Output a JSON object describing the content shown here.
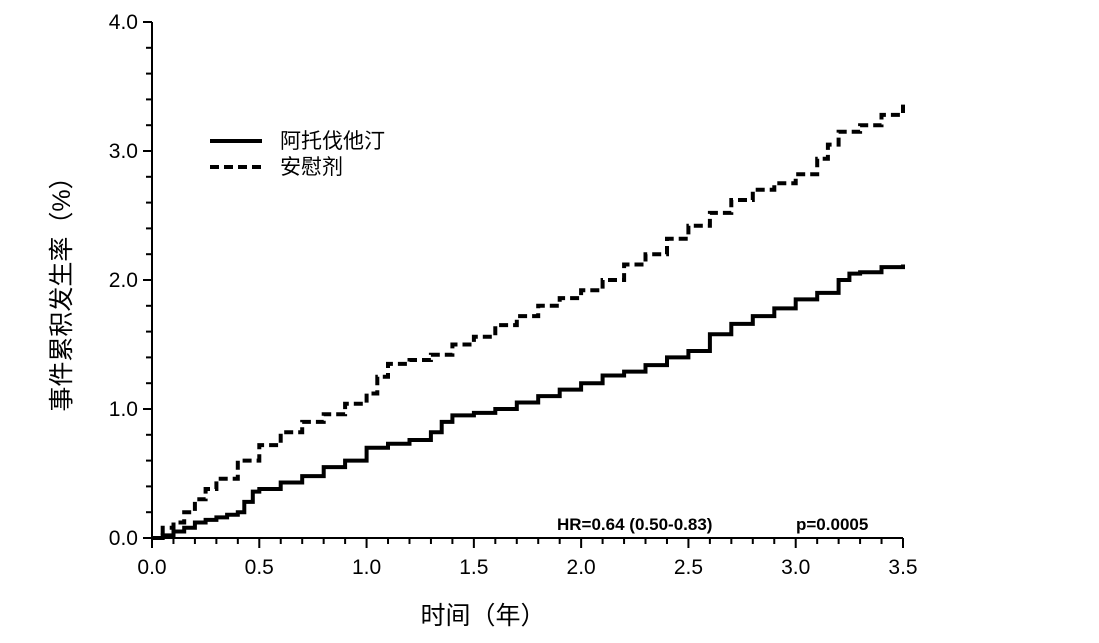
{
  "chart_data": {
    "type": "line",
    "xlabel": "时间（年）",
    "ylabel": "事件累积发生率（%）",
    "xlim": [
      0,
      3.5
    ],
    "ylim": [
      0,
      4.0
    ],
    "xticks": [
      "0.0",
      "0.5",
      "1.0",
      "1.5",
      "2.0",
      "2.5",
      "3.0",
      "3.5"
    ],
    "yticks": [
      "0.0",
      "1.0",
      "2.0",
      "3.0",
      "4.0"
    ],
    "grid": false,
    "legend_position": "top-left",
    "annotations": {
      "hr": "HR=0.64 (0.50-0.83)",
      "p": "p=0.0005"
    },
    "series": [
      {
        "name": "阿托伐他汀",
        "style": "solid",
        "x": [
          0.0,
          0.05,
          0.1,
          0.15,
          0.2,
          0.25,
          0.3,
          0.35,
          0.4,
          0.43,
          0.47,
          0.5,
          0.6,
          0.7,
          0.8,
          0.9,
          1.0,
          1.1,
          1.2,
          1.3,
          1.35,
          1.4,
          1.5,
          1.6,
          1.7,
          1.8,
          1.9,
          2.0,
          2.1,
          2.2,
          2.3,
          2.4,
          2.5,
          2.6,
          2.7,
          2.8,
          2.9,
          3.0,
          3.1,
          3.2,
          3.25,
          3.3,
          3.4,
          3.5
        ],
        "values": [
          0.0,
          0.02,
          0.05,
          0.08,
          0.12,
          0.14,
          0.16,
          0.18,
          0.2,
          0.28,
          0.36,
          0.38,
          0.43,
          0.48,
          0.55,
          0.6,
          0.7,
          0.73,
          0.76,
          0.82,
          0.9,
          0.95,
          0.97,
          1.0,
          1.05,
          1.1,
          1.15,
          1.2,
          1.26,
          1.29,
          1.34,
          1.4,
          1.45,
          1.58,
          1.66,
          1.72,
          1.78,
          1.85,
          1.9,
          2.0,
          2.05,
          2.06,
          2.1,
          2.12
        ]
      },
      {
        "name": "安慰剂",
        "style": "dashed",
        "x": [
          0.0,
          0.05,
          0.1,
          0.15,
          0.2,
          0.25,
          0.3,
          0.4,
          0.5,
          0.6,
          0.7,
          0.8,
          0.9,
          1.0,
          1.05,
          1.1,
          1.2,
          1.3,
          1.4,
          1.5,
          1.6,
          1.7,
          1.8,
          1.9,
          2.0,
          2.1,
          2.2,
          2.3,
          2.4,
          2.5,
          2.6,
          2.7,
          2.8,
          2.9,
          3.0,
          3.1,
          3.15,
          3.2,
          3.3,
          3.4,
          3.5
        ],
        "values": [
          0.0,
          0.08,
          0.12,
          0.2,
          0.3,
          0.38,
          0.46,
          0.6,
          0.72,
          0.82,
          0.9,
          0.96,
          1.04,
          1.12,
          1.25,
          1.35,
          1.38,
          1.42,
          1.5,
          1.56,
          1.65,
          1.72,
          1.8,
          1.86,
          1.92,
          2.0,
          2.12,
          2.2,
          2.32,
          2.42,
          2.52,
          2.62,
          2.7,
          2.75,
          2.82,
          2.94,
          3.05,
          3.15,
          3.2,
          3.28,
          3.36
        ]
      }
    ]
  }
}
